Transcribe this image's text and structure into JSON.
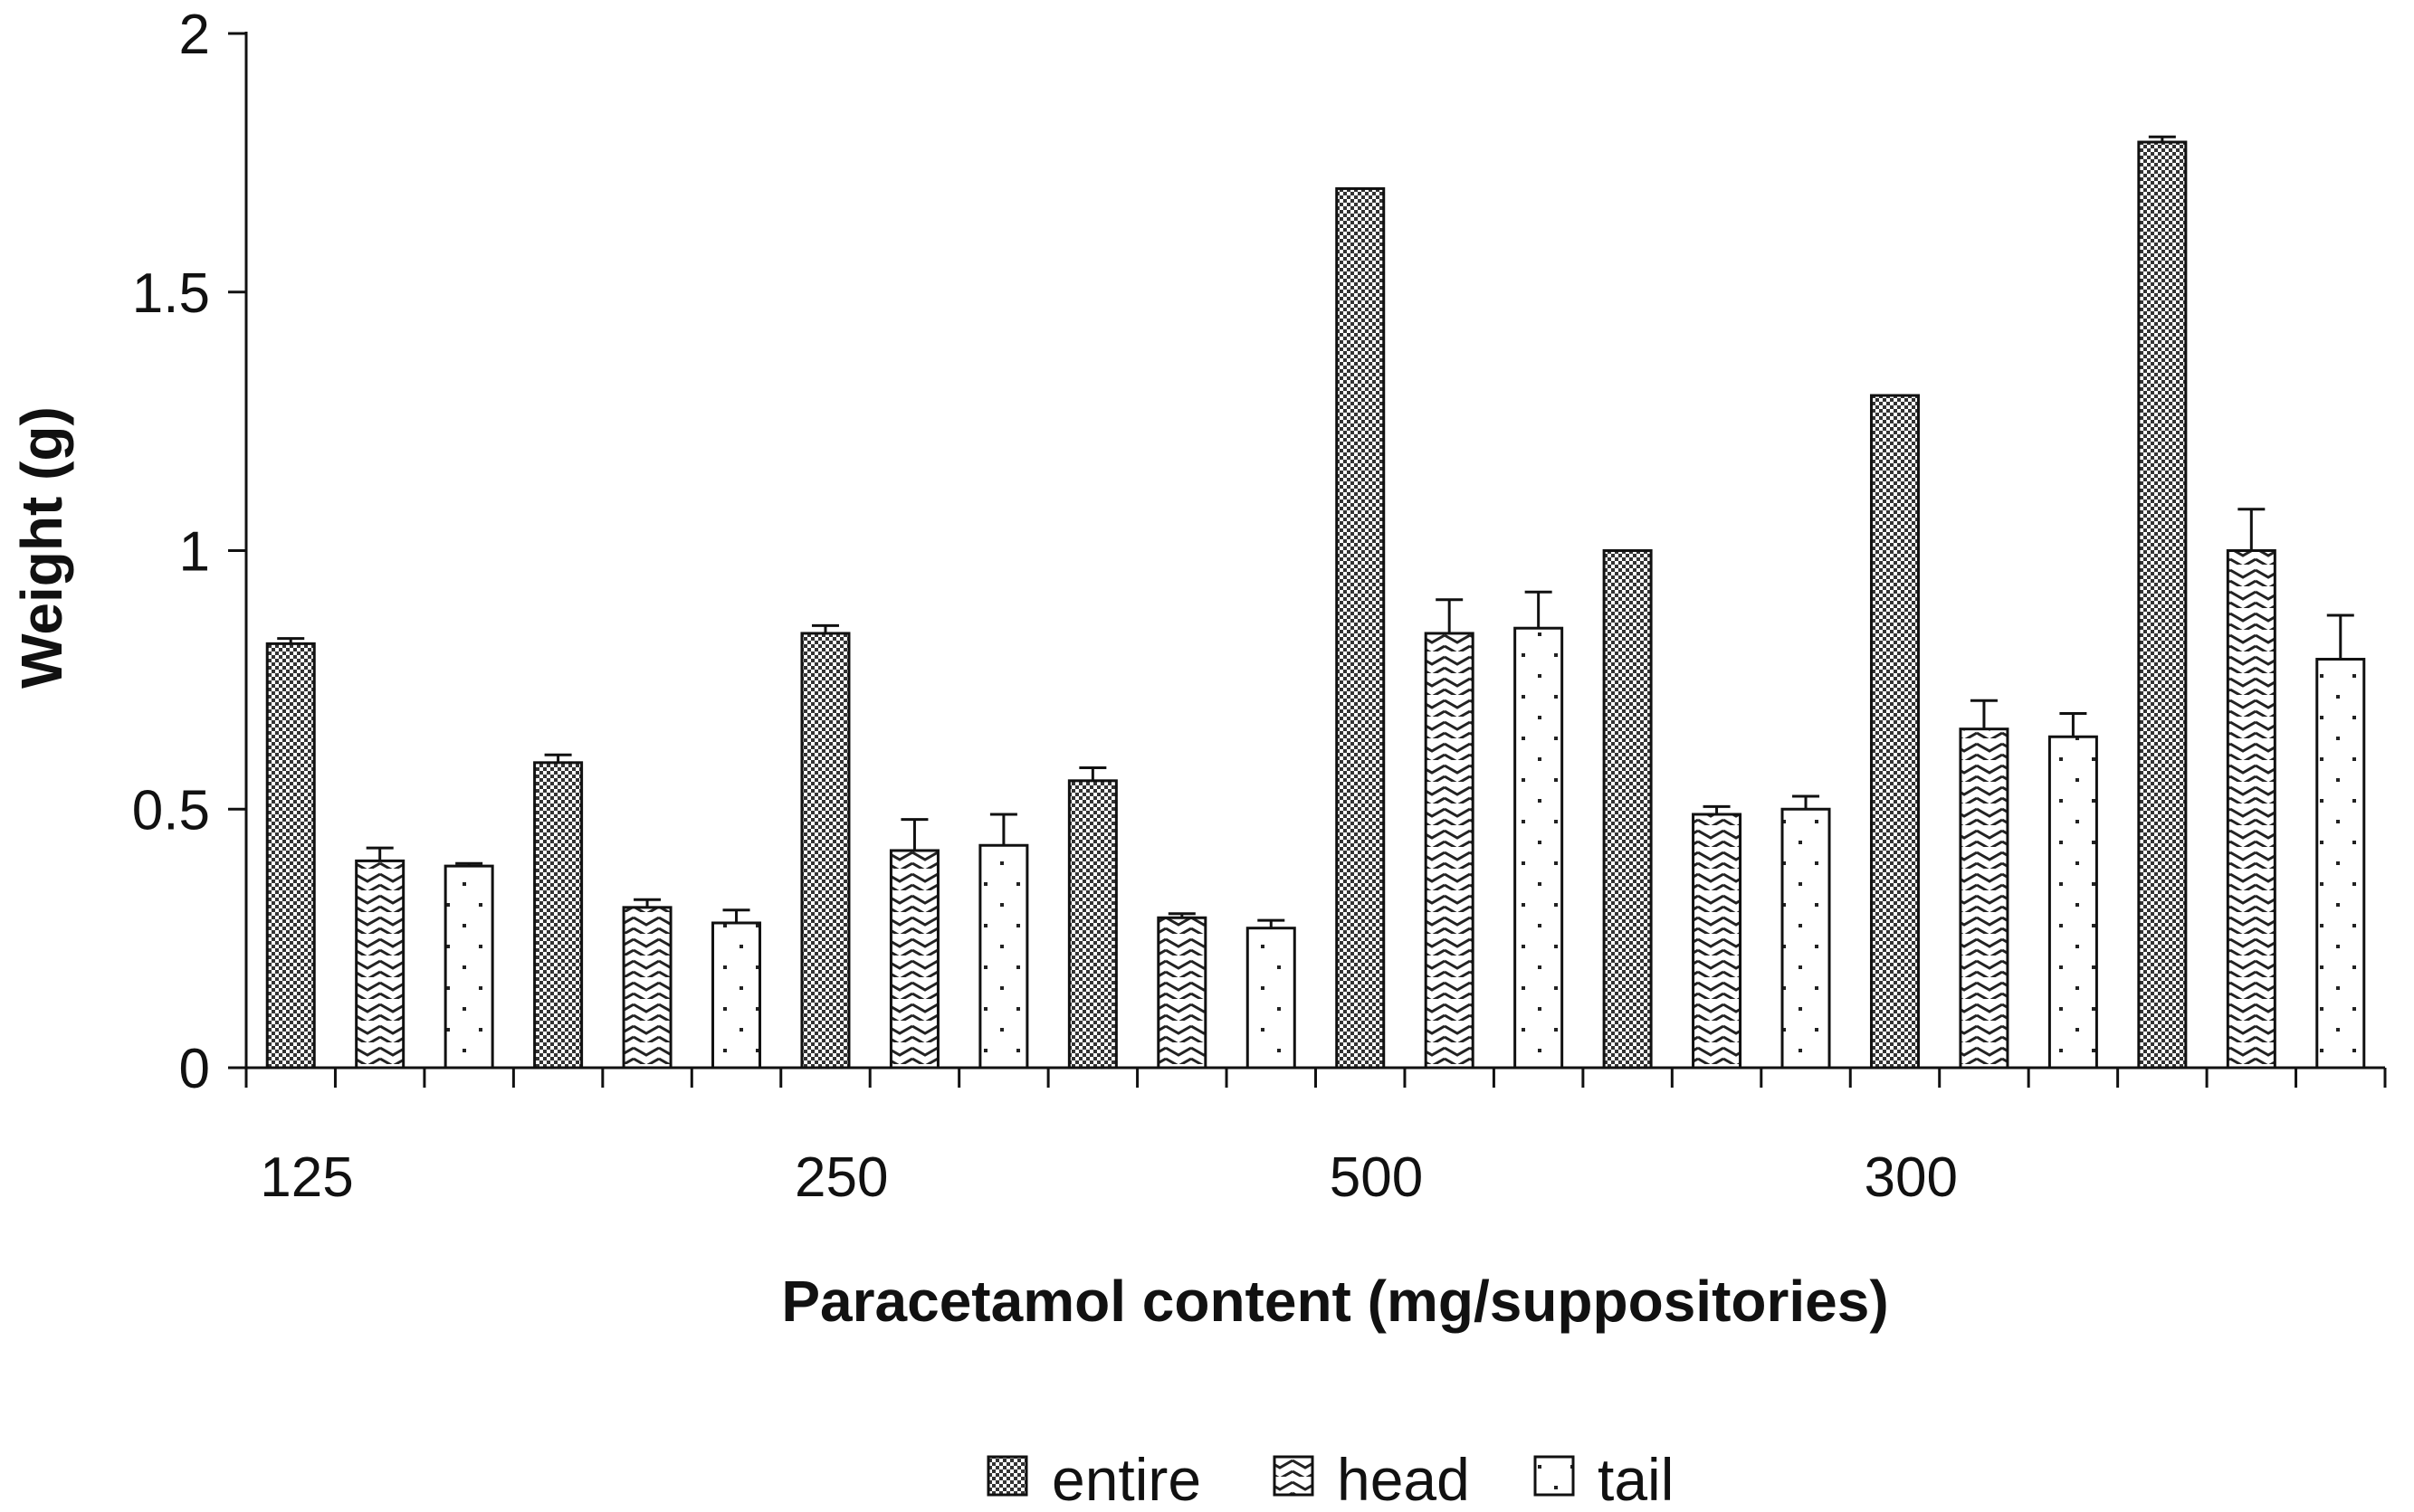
{
  "chart_data": {
    "type": "bar",
    "title": "",
    "xlabel": "Paracetamol content (mg/suppositories)",
    "ylabel": "Weight (g)",
    "ylim": [
      0,
      2
    ],
    "yticks": [
      "0",
      "0.5",
      "1",
      "1.5",
      "2"
    ],
    "x_tick_labels": [
      "125",
      "250",
      "500",
      "300"
    ],
    "groups_count": 8,
    "legend_position": "bottom",
    "grid": false,
    "series": [
      {
        "name": "entire",
        "values": [
          0.82,
          0.59,
          0.84,
          0.555,
          1.7,
          1.0,
          1.3,
          1.79
        ],
        "errors": [
          0.01,
          0.015,
          0.015,
          0.025,
          0.0,
          0.0,
          0.0,
          0.01
        ]
      },
      {
        "name": "head",
        "values": [
          0.4,
          0.31,
          0.42,
          0.29,
          0.84,
          0.49,
          0.655,
          1.0
        ],
        "errors": [
          0.025,
          0.015,
          0.06,
          0.008,
          0.065,
          0.015,
          0.055,
          0.08
        ]
      },
      {
        "name": "tail",
        "values": [
          0.39,
          0.28,
          0.43,
          0.27,
          0.85,
          0.5,
          0.64,
          0.79
        ],
        "errors": [
          0.005,
          0.025,
          0.06,
          0.015,
          0.07,
          0.025,
          0.045,
          0.085
        ]
      }
    ]
  }
}
